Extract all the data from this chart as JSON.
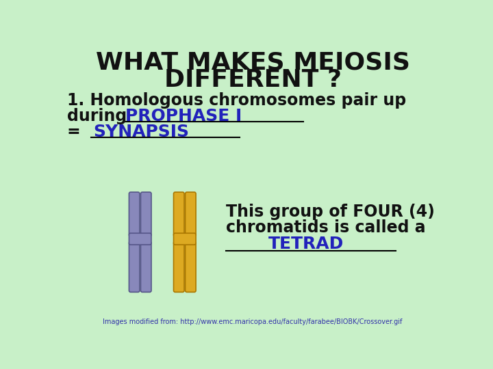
{
  "bg_color": "#c8f0c8",
  "title_line1": "WHAT MAKES MEIOSIS",
  "title_line2": "DIFFERENT ?",
  "title_color": "#111111",
  "title_fontsize": 26,
  "body_color": "#111111",
  "body_fontsize": 17,
  "highlight_color": "#2222bb",
  "highlight_fontsize": 18,
  "line1": "1. Homologous chromosomes pair up",
  "line2_prefix": "during  ",
  "line2_answer": "PROPHASE I",
  "line3_prefix": "=  ",
  "line3_answer": "SYNAPSIS",
  "desc_line1": "This group of FOUR (4)",
  "desc_line2": "chromatids is called a",
  "desc_answer": "TETRAD",
  "footer": "Images modified from: http://www.emc.maricopa.edu/faculty/farabee/BIOBK/Crossover.gif",
  "footer_color": "#3333aa",
  "footer_fontsize": 7,
  "chrom_purple_fill": "#8888bb",
  "chrom_purple_edge": "#555588",
  "chrom_orange_fill": "#ddaa22",
  "chrom_orange_edge": "#aa7700"
}
